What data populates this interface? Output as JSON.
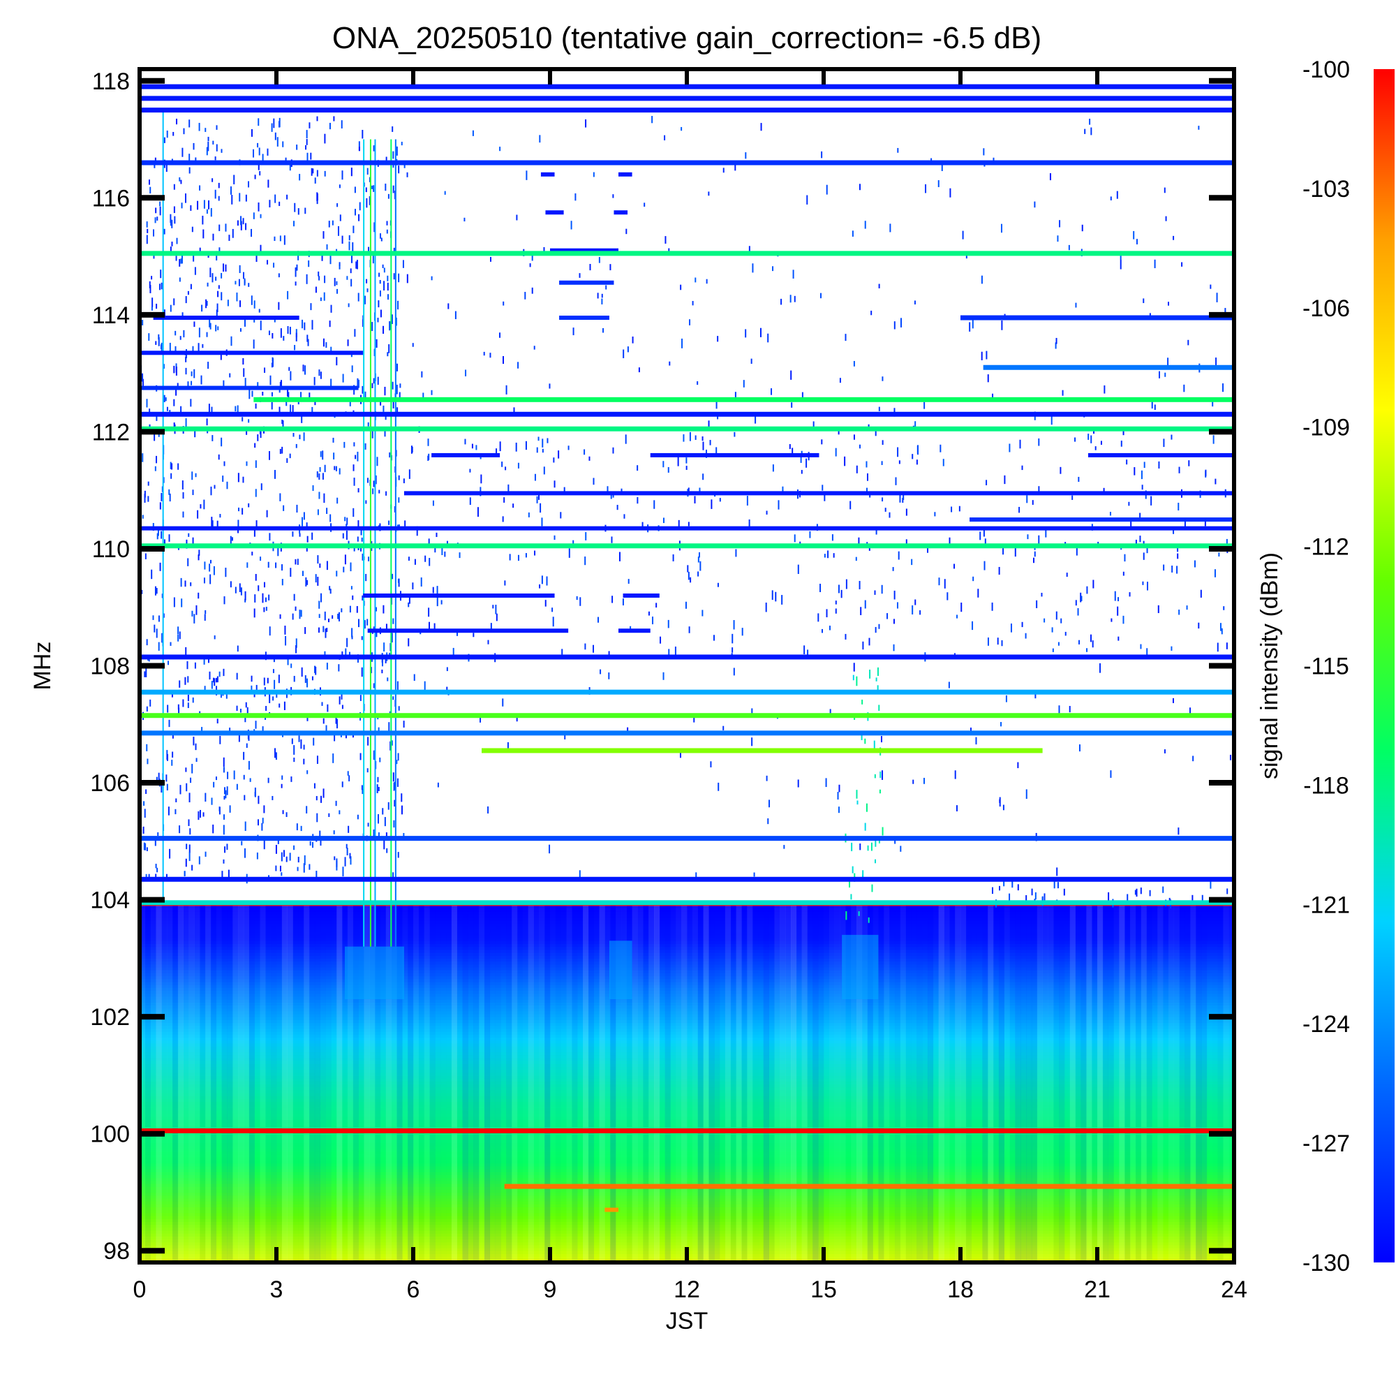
{
  "chart_data": {
    "type": "heatmap",
    "title": "ONA_20250510 (tentative gain_correction= -6.5 dB)",
    "xlabel": "JST",
    "ylabel": "MHz",
    "colorbar_label": "signal intensity (dBm)",
    "xlim": [
      0,
      24
    ],
    "ylim": [
      97.8,
      118.2
    ],
    "x_ticks": [
      0,
      3,
      6,
      9,
      12,
      15,
      18,
      21,
      24
    ],
    "x_tick_labels": [
      "0",
      "3",
      "6",
      "9",
      "12",
      "15",
      "18",
      "21",
      "24"
    ],
    "y_ticks": [
      98,
      100,
      102,
      104,
      106,
      108,
      110,
      112,
      114,
      116,
      118
    ],
    "y_tick_labels": [
      "98",
      "100",
      "102",
      "104",
      "106",
      "108",
      "110",
      "112",
      "114",
      "116",
      "118"
    ],
    "color_range": [
      -130,
      -100
    ],
    "colorbar_ticks": [
      -100,
      -103,
      -106,
      -109,
      -112,
      -115,
      -118,
      -121,
      -124,
      -127,
      -130
    ],
    "colorbar_tick_labels": [
      "-100",
      "-103",
      "-106",
      "-109",
      "-112",
      "-115",
      "-118",
      "-121",
      "-124",
      "-127",
      "-130"
    ],
    "colormap": [
      "#0000ff",
      "#0064ff",
      "#00d2ff",
      "#00ff64",
      "#64ff00",
      "#ffff00",
      "#ffa000",
      "#ff0000"
    ],
    "background_profile": [
      {
        "freq_MHz": 97.8,
        "dBm": -109.5
      },
      {
        "freq_MHz": 98.5,
        "dBm": -112.5
      },
      {
        "freq_MHz": 99.5,
        "dBm": -117
      },
      {
        "freq_MHz": 100.5,
        "dBm": -118.5
      },
      {
        "freq_MHz": 101.5,
        "dBm": -121
      },
      {
        "freq_MHz": 102.5,
        "dBm": -125
      },
      {
        "freq_MHz": 103.3,
        "dBm": -129
      },
      {
        "freq_MHz": 103.9,
        "dBm": -130
      }
    ],
    "persistent_lines": [
      {
        "freq_MHz": 117.9,
        "dBm": -129,
        "t_start": 0,
        "t_end": 24
      },
      {
        "freq_MHz": 117.7,
        "dBm": -129,
        "t_start": 0,
        "t_end": 24
      },
      {
        "freq_MHz": 117.5,
        "dBm": -129,
        "t_start": 0,
        "t_end": 24
      },
      {
        "freq_MHz": 116.6,
        "dBm": -128,
        "t_start": 0,
        "t_end": 24
      },
      {
        "freq_MHz": 115.05,
        "dBm": -118,
        "t_start": 0,
        "t_end": 24
      },
      {
        "freq_MHz": 113.95,
        "dBm": -128,
        "t_start": 18,
        "t_end": 24
      },
      {
        "freq_MHz": 113.1,
        "dBm": -125,
        "t_start": 18.5,
        "t_end": 24
      },
      {
        "freq_MHz": 112.55,
        "dBm": -117,
        "t_start": 2.5,
        "t_end": 24
      },
      {
        "freq_MHz": 112.3,
        "dBm": -129,
        "t_start": 0,
        "t_end": 24
      },
      {
        "freq_MHz": 112.05,
        "dBm": -118,
        "t_start": 0,
        "t_end": 24
      },
      {
        "freq_MHz": 110.05,
        "dBm": -118,
        "t_start": 0,
        "t_end": 24
      },
      {
        "freq_MHz": 108.15,
        "dBm": -129,
        "t_start": 0,
        "t_end": 24
      },
      {
        "freq_MHz": 107.55,
        "dBm": -123,
        "t_start": 0,
        "t_end": 24
      },
      {
        "freq_MHz": 107.15,
        "dBm": -114,
        "t_start": 0,
        "t_end": 24
      },
      {
        "freq_MHz": 106.85,
        "dBm": -125,
        "t_start": 0,
        "t_end": 24
      },
      {
        "freq_MHz": 106.55,
        "dBm": -112,
        "t_start": 7.5,
        "t_end": 19.8
      },
      {
        "freq_MHz": 105.05,
        "dBm": -127,
        "t_start": 0,
        "t_end": 24
      },
      {
        "freq_MHz": 104.35,
        "dBm": -129,
        "t_start": 0,
        "t_end": 24
      },
      {
        "freq_MHz": 103.95,
        "dBm": -120,
        "t_start": 0,
        "t_end": 24
      },
      {
        "freq_MHz": 100.05,
        "dBm": -100,
        "t_start": 0,
        "t_end": 24
      },
      {
        "freq_MHz": 99.1,
        "dBm": -103,
        "t_start": 8,
        "t_end": 24
      }
    ],
    "intermittent_segments": [
      {
        "freq_MHz": 113.95,
        "dBm": -129,
        "t_start": 0.3,
        "t_end": 3.5
      },
      {
        "freq_MHz": 113.95,
        "dBm": -128,
        "t_start": 9.2,
        "t_end": 10.3
      },
      {
        "freq_MHz": 113.35,
        "dBm": -129,
        "t_start": 0,
        "t_end": 4.9
      },
      {
        "freq_MHz": 112.75,
        "dBm": -128,
        "t_start": 0,
        "t_end": 4.8
      },
      {
        "freq_MHz": 114.55,
        "dBm": -128,
        "t_start": 9.2,
        "t_end": 10.4
      },
      {
        "freq_MHz": 115.1,
        "dBm": -129,
        "t_start": 9.0,
        "t_end": 10.5
      },
      {
        "freq_MHz": 115.75,
        "dBm": -129,
        "t_start": 8.9,
        "t_end": 9.3
      },
      {
        "freq_MHz": 115.75,
        "dBm": -129,
        "t_start": 10.4,
        "t_end": 10.7
      },
      {
        "freq_MHz": 116.4,
        "dBm": -129,
        "t_start": 8.8,
        "t_end": 9.1
      },
      {
        "freq_MHz": 116.4,
        "dBm": -129,
        "t_start": 10.5,
        "t_end": 10.8
      },
      {
        "freq_MHz": 111.6,
        "dBm": -129,
        "t_start": 6.4,
        "t_end": 7.9
      },
      {
        "freq_MHz": 111.6,
        "dBm": -129,
        "t_start": 11.2,
        "t_end": 14.9
      },
      {
        "freq_MHz": 111.6,
        "dBm": -129,
        "t_start": 20.8,
        "t_end": 24
      },
      {
        "freq_MHz": 110.95,
        "dBm": -129,
        "t_start": 5.8,
        "t_end": 24
      },
      {
        "freq_MHz": 110.5,
        "dBm": -128,
        "t_start": 18.2,
        "t_end": 24
      },
      {
        "freq_MHz": 110.35,
        "dBm": -129,
        "t_start": 0,
        "t_end": 24
      },
      {
        "freq_MHz": 109.2,
        "dBm": -129,
        "t_start": 4.9,
        "t_end": 9.1
      },
      {
        "freq_MHz": 109.2,
        "dBm": -129,
        "t_start": 10.6,
        "t_end": 11.4
      },
      {
        "freq_MHz": 108.6,
        "dBm": -129,
        "t_start": 5.0,
        "t_end": 9.4
      },
      {
        "freq_MHz": 108.6,
        "dBm": -129,
        "t_start": 10.5,
        "t_end": 11.2
      },
      {
        "freq_MHz": 98.7,
        "dBm": -104,
        "t_start": 10.2,
        "t_end": 10.5
      }
    ],
    "noise_regions": [
      {
        "f_min": 104.4,
        "f_max": 117.4,
        "t_min": 0,
        "t_max": 5.8,
        "density": 0.55,
        "dBm": -129
      },
      {
        "f_min": 108.2,
        "f_max": 112.0,
        "t_min": 5.8,
        "t_max": 24,
        "density": 0.22,
        "dBm": -129
      },
      {
        "f_min": 112.0,
        "f_max": 117.4,
        "t_min": 5.8,
        "t_max": 24,
        "density": 0.07,
        "dBm": -129
      },
      {
        "f_min": 104.4,
        "f_max": 108.1,
        "t_min": 5.8,
        "t_max": 24,
        "density": 0.04,
        "dBm": -129
      },
      {
        "f_min": 103.6,
        "f_max": 108.0,
        "t_min": 15.4,
        "t_max": 16.3,
        "density": 0.35,
        "dBm": -121
      },
      {
        "f_min": 104.0,
        "f_max": 104.4,
        "t_min": 18.6,
        "t_max": 24,
        "density": 0.6,
        "dBm": -129
      }
    ],
    "vertical_streaks": [
      {
        "t": 0.5,
        "f_min": 104.0,
        "f_max": 117.5,
        "dBm": -122
      },
      {
        "t": 4.9,
        "f_min": 103.2,
        "f_max": 117.0,
        "dBm": -121
      },
      {
        "t": 5.05,
        "f_min": 103.2,
        "f_max": 117.0,
        "dBm": -115
      },
      {
        "t": 5.15,
        "f_min": 103.2,
        "f_max": 117.0,
        "dBm": -123
      },
      {
        "t": 5.5,
        "f_min": 103.2,
        "f_max": 117.0,
        "dBm": -117
      },
      {
        "t": 5.6,
        "f_min": 103.2,
        "f_max": 117.0,
        "dBm": -125
      }
    ],
    "dips": [
      {
        "t_start": 4.5,
        "t_end": 5.8,
        "f_top": 103.2
      },
      {
        "t_start": 10.3,
        "t_end": 10.8,
        "f_top": 103.3
      },
      {
        "t_start": 15.4,
        "t_end": 16.2,
        "f_top": 103.4
      }
    ]
  }
}
